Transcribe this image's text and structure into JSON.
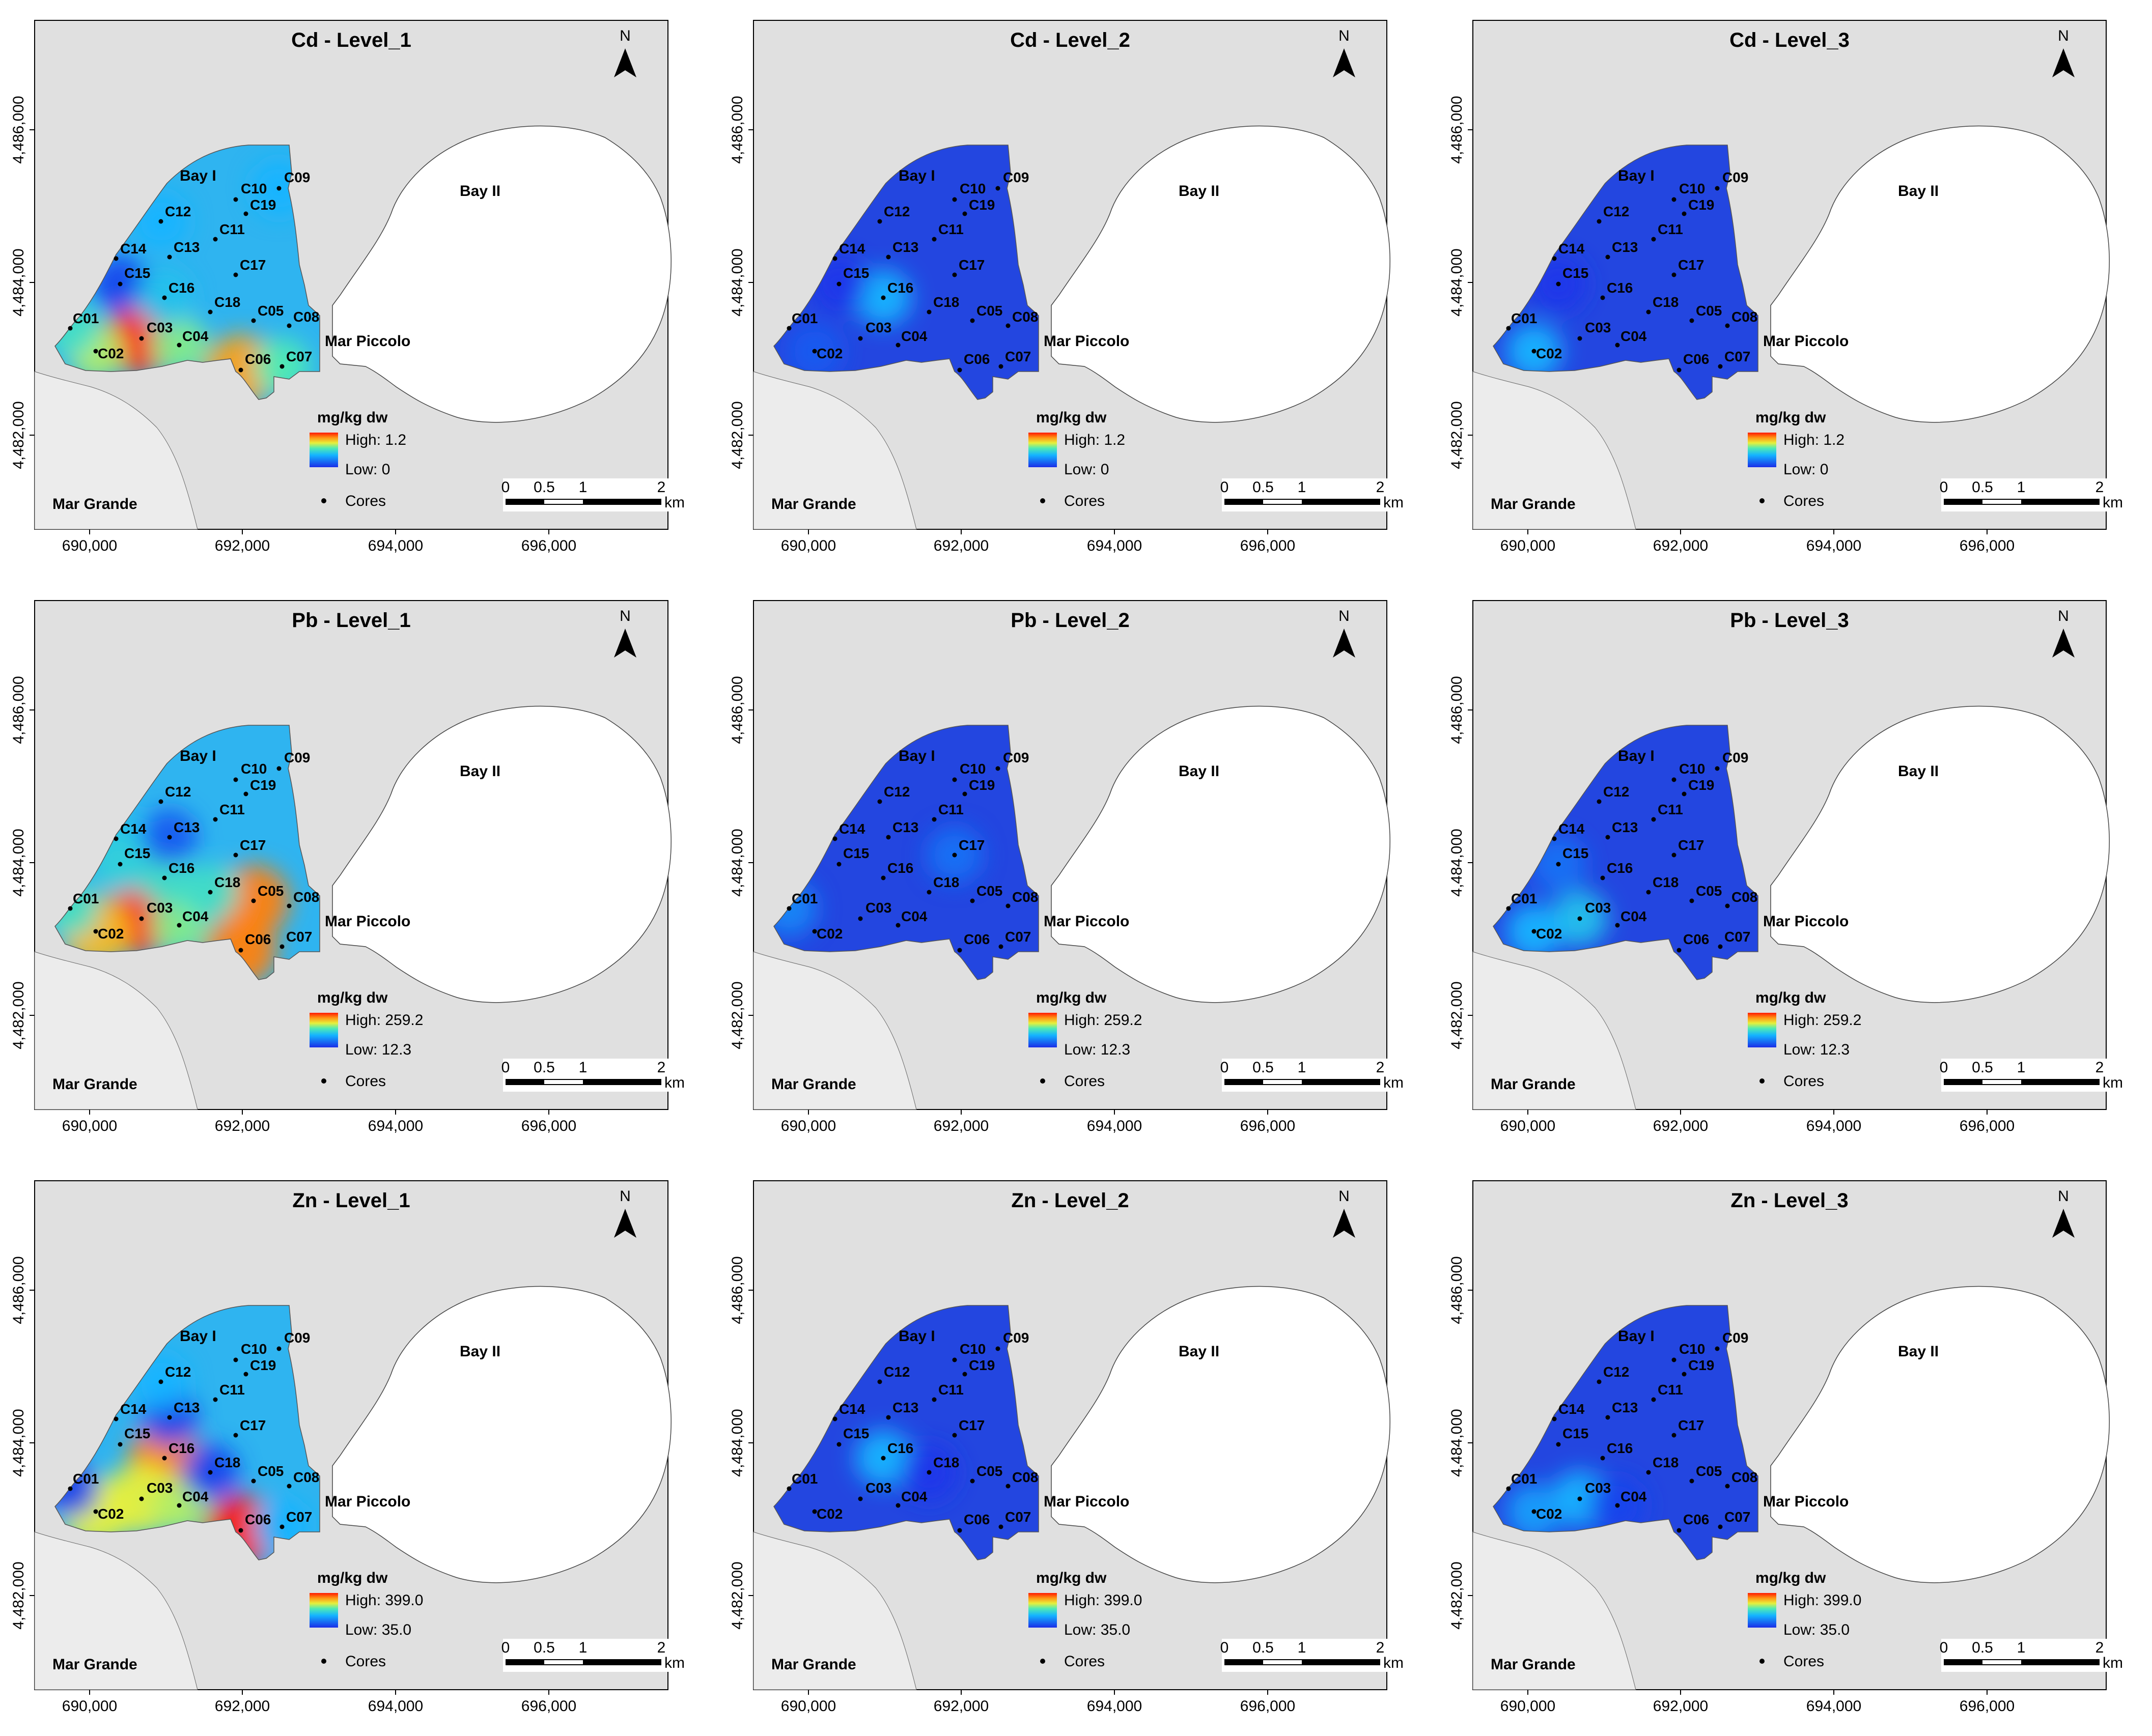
{
  "panels": [
    {
      "title": "Cd - Level_1",
      "metal": "Cd",
      "level": 1,
      "legend_high": "High: 1.2",
      "legend_low": "Low: 0",
      "hotspots": [
        {
          "core": "C03",
          "v": 1.0
        },
        {
          "core": "C02",
          "v": 0.6
        },
        {
          "core": "C04",
          "v": 0.55
        },
        {
          "core": "C01",
          "v": 0.45
        },
        {
          "core": "C06",
          "v": 0.8
        },
        {
          "core": "C07",
          "v": 0.5
        },
        {
          "core": "C15",
          "v": 0.05
        },
        {
          "core": "C16",
          "v": 0.35
        },
        {
          "core": "C12",
          "v": 0.3
        },
        {
          "core": "C09",
          "v": 0.3
        }
      ]
    },
    {
      "title": "Cd - Level_2",
      "metal": "Cd",
      "level": 2,
      "legend_high": "High: 1.2",
      "legend_low": "Low: 0",
      "hotspots": [
        {
          "core": "C16",
          "v": 0.3
        },
        {
          "core": "C15",
          "v": 0.02
        },
        {
          "core": "C02",
          "v": 0.1
        }
      ]
    },
    {
      "title": "Cd - Level_3",
      "metal": "Cd",
      "level": 3,
      "legend_high": "High: 1.2",
      "legend_low": "Low: 0",
      "hotspots": [
        {
          "core": "C02",
          "v": 0.3
        },
        {
          "core": "C15",
          "v": 0.02
        }
      ]
    },
    {
      "title": "Pb - Level_1",
      "metal": "Pb",
      "level": 1,
      "legend_high": "High: 259.2",
      "legend_low": "Low: 12.3",
      "hotspots": [
        {
          "core": "C03",
          "v": 1.0
        },
        {
          "core": "C02",
          "v": 0.75
        },
        {
          "core": "C05",
          "v": 0.85
        },
        {
          "core": "C06",
          "v": 0.85
        },
        {
          "core": "C04",
          "v": 0.55
        },
        {
          "core": "C01",
          "v": 0.45
        },
        {
          "core": "C16",
          "v": 0.45
        },
        {
          "core": "C14",
          "v": 0.35
        },
        {
          "core": "C15",
          "v": 0.4
        },
        {
          "core": "C13",
          "v": 0.1
        },
        {
          "core": "C18",
          "v": 0.45
        }
      ]
    },
    {
      "title": "Pb - Level_2",
      "metal": "Pb",
      "level": 2,
      "legend_high": "High: 259.2",
      "legend_low": "Low: 12.3",
      "hotspots": [
        {
          "core": "C01",
          "v": 0.2
        },
        {
          "core": "C17",
          "v": 0.15
        }
      ]
    },
    {
      "title": "Pb - Level_3",
      "metal": "Pb",
      "level": 3,
      "legend_high": "High: 259.2",
      "legend_low": "Low: 12.3",
      "hotspots": [
        {
          "core": "C03",
          "v": 0.35
        },
        {
          "core": "C02",
          "v": 0.3
        },
        {
          "core": "C15",
          "v": 0.15
        }
      ]
    },
    {
      "title": "Zn - Level_1",
      "metal": "Zn",
      "level": 1,
      "legend_high": "High: 399.0",
      "legend_low": "Low: 35.0",
      "hotspots": [
        {
          "core": "C06",
          "v": 1.0
        },
        {
          "core": "C16",
          "v": 0.85
        },
        {
          "core": "C02",
          "v": 0.65
        },
        {
          "core": "C03",
          "v": 0.65
        },
        {
          "core": "C04",
          "v": 0.6
        },
        {
          "core": "C01",
          "v": 0.05
        },
        {
          "core": "C18",
          "v": 0.05
        },
        {
          "core": "C13",
          "v": 0.05
        },
        {
          "core": "C07",
          "v": 0.3
        },
        {
          "core": "C12",
          "v": 0.3
        }
      ]
    },
    {
      "title": "Zn - Level_2",
      "metal": "Zn",
      "level": 2,
      "legend_high": "High: 399.0",
      "legend_low": "Low: 35.0",
      "hotspots": [
        {
          "core": "C16",
          "v": 0.3
        },
        {
          "core": "C18",
          "v": 0.02
        }
      ]
    },
    {
      "title": "Zn - Level_3",
      "metal": "Zn",
      "level": 3,
      "legend_high": "High: 399.0",
      "legend_low": "Low: 35.0",
      "hotspots": [
        {
          "core": "C03",
          "v": 0.3
        },
        {
          "core": "C02",
          "v": 0.25
        },
        {
          "core": "C04",
          "v": 0.05
        }
      ]
    }
  ],
  "common": {
    "unit_title": "mg/kg dw",
    "cores_label": "Cores",
    "bay1": "Bay I",
    "bay2": "Bay II",
    "mar_piccolo": "Mar Piccolo",
    "mar_grande": "Mar Grande",
    "north": "N",
    "x_ticks": [
      "690,000",
      "692,000",
      "694,000",
      "696,000"
    ],
    "y_ticks": [
      "4,486,000",
      "4,484,000",
      "4,482,000"
    ],
    "scale_labels": [
      "0",
      "0.5",
      "1",
      "2"
    ],
    "scale_unit": "km"
  },
  "cores": [
    "C01",
    "C02",
    "C03",
    "C04",
    "C05",
    "C06",
    "C07",
    "C08",
    "C09",
    "C10",
    "C11",
    "C12",
    "C13",
    "C14",
    "C15",
    "C16",
    "C17",
    "C18",
    "C19"
  ],
  "colors": {
    "sea": "#ffffff",
    "land": "#e0e0e0",
    "low": "#1a2ee8",
    "high": "#ff1a00"
  }
}
